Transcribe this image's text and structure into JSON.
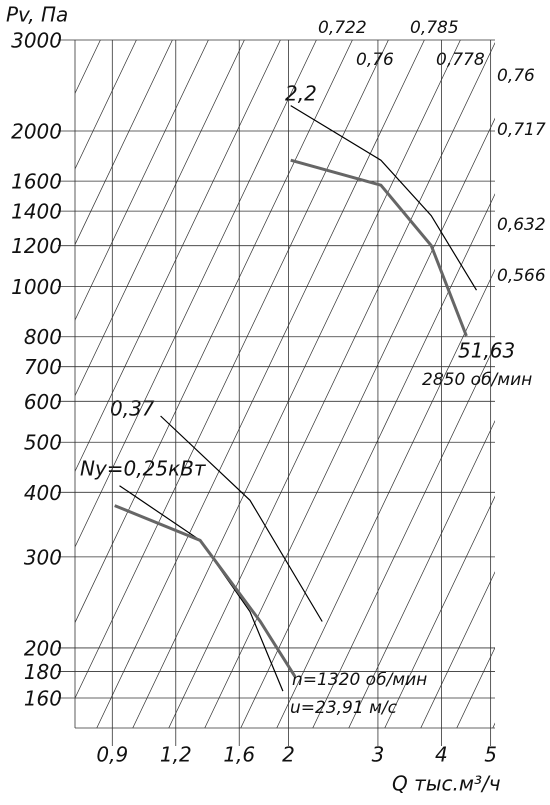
{
  "chart_data": {
    "type": "line",
    "y_label": "Pv, Па",
    "x_label": "Q тыс.м³/ч",
    "log_x": true,
    "log_y": true,
    "grid": true,
    "xlim": [
      0.76,
      5.1
    ],
    "ylim": [
      140,
      3000
    ],
    "xticks": [
      {
        "value": 0.9,
        "label": "0,9"
      },
      {
        "value": 1.2,
        "label": "1,2"
      },
      {
        "value": 1.6,
        "label": "1,6"
      },
      2,
      3,
      4,
      5
    ],
    "yticks": [
      3000,
      2000,
      1600,
      1400,
      1200,
      1000,
      800,
      700,
      600,
      500,
      400,
      300,
      200,
      180,
      160
    ],
    "series": [
      {
        "color": "#000000",
        "line_width": 1.2,
        "x": [
          2.02,
          3.04,
          3.82,
          4.69
        ],
        "values": [
          2240,
          1756,
          1372,
          984
        ]
      },
      {
        "color": "#666666",
        "line_width": 3,
        "x": [
          2.02,
          3.04,
          3.82,
          4.48
        ],
        "values": [
          1756,
          1571,
          1201,
          803
        ]
      },
      {
        "color": "#000000",
        "line_width": 1.2,
        "x": [
          1.12,
          1.68,
          2.33
        ],
        "values": [
          562,
          386,
          225
        ]
      },
      {
        "color": "#000000",
        "line_width": 1.2,
        "x": [
          0.93,
          1.34,
          1.68,
          1.95
        ],
        "values": [
          412,
          323,
          235,
          165
        ]
      },
      {
        "color": "#666666",
        "line_width": 3,
        "x": [
          0.91,
          1.34,
          1.76,
          2.06
        ],
        "values": [
          377,
          323,
          225,
          176
        ]
      }
    ],
    "annotations": [
      "2,2",
      "51,63",
      "2850 об/мин",
      "0,37",
      "Ny=0,25кВт",
      "n=1320 об/мин",
      "u=23,91 м/с"
    ],
    "efficiency_labels": [
      "0,722",
      "0,785",
      "0,76",
      "0,778",
      "0,76",
      "0,717",
      "0,632",
      "0,566"
    ]
  }
}
